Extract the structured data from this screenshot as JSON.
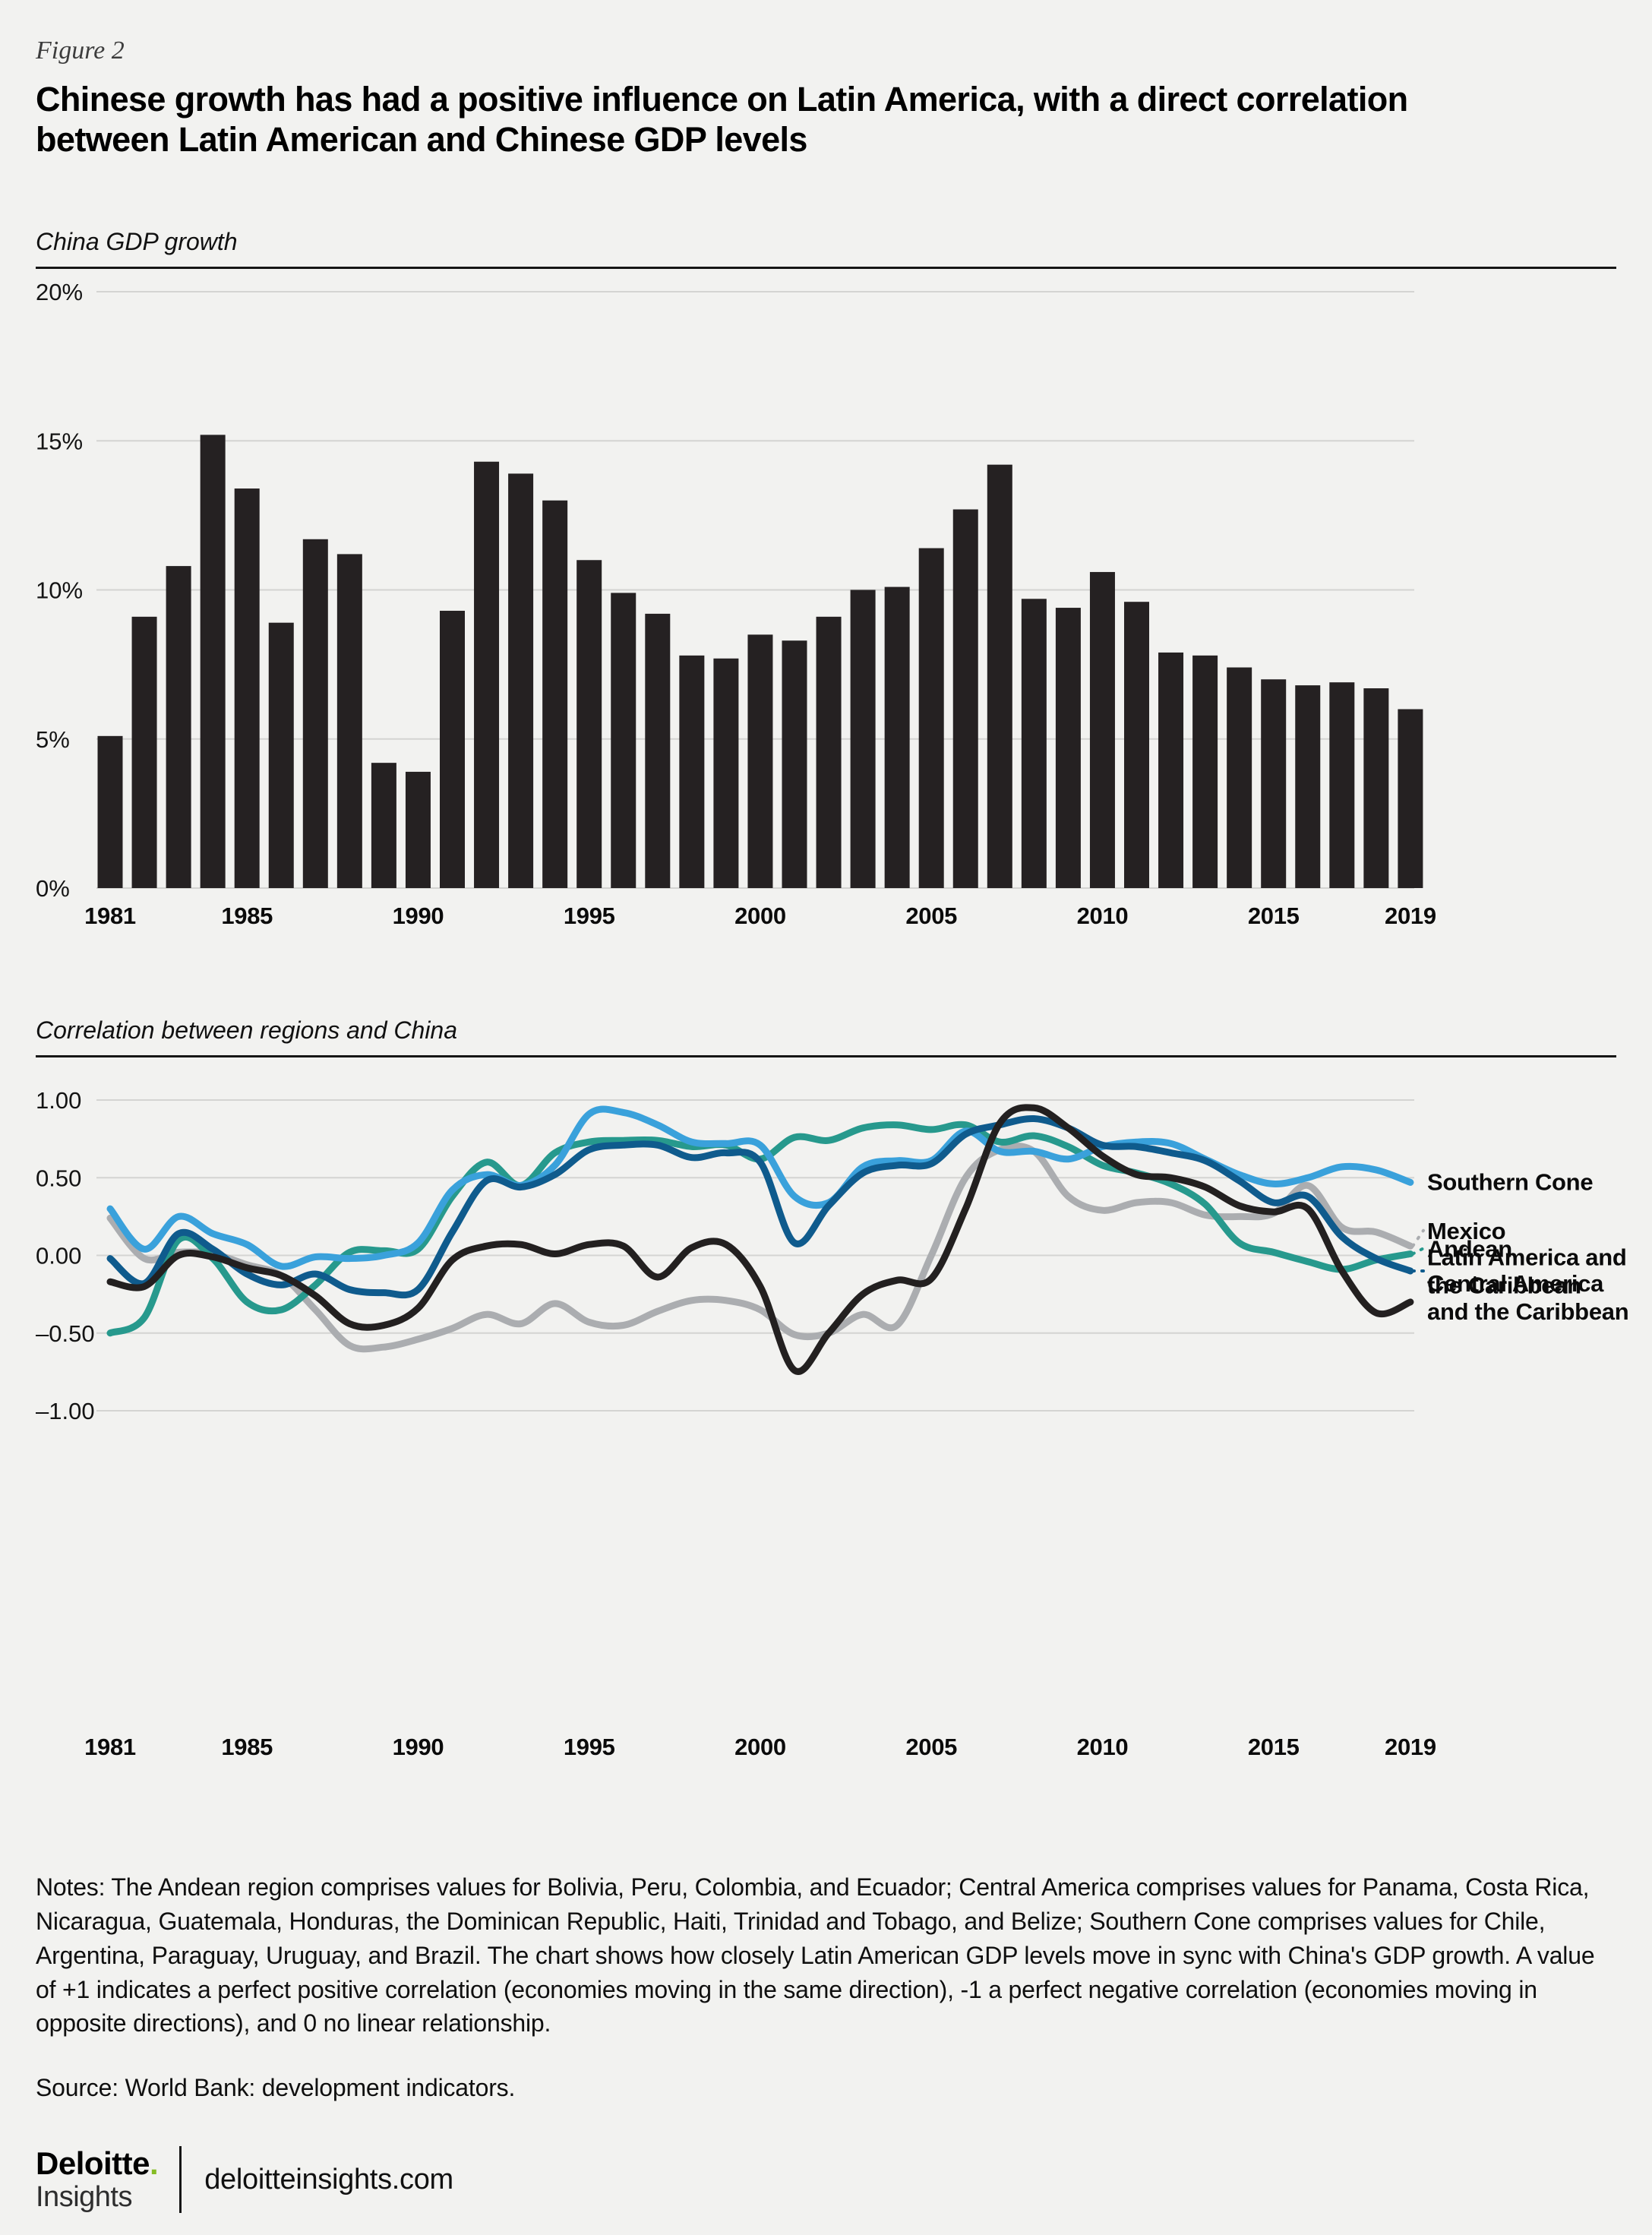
{
  "header": {
    "figure_label": "Figure 2",
    "title_lines": [
      "Chinese growth has had a positive influence on Latin America, with a direct correlation",
      "between Latin American and Chinese GDP levels"
    ]
  },
  "chart_data": [
    {
      "type": "bar",
      "title": "China GDP growth",
      "bar_color": "#252122",
      "ylim": [
        0,
        20
      ],
      "yticks": [
        "20%",
        "15%",
        "10%",
        "5%",
        "0%"
      ],
      "ytick_values": [
        20,
        15,
        10,
        5,
        0
      ],
      "xticks": [
        1981,
        1985,
        1990,
        1995,
        2000,
        2005,
        2010,
        2015,
        2019
      ],
      "grid": true,
      "categories": [
        1981,
        1982,
        1983,
        1984,
        1985,
        1986,
        1987,
        1988,
        1989,
        1990,
        1991,
        1992,
        1993,
        1994,
        1995,
        1996,
        1997,
        1998,
        1999,
        2000,
        2001,
        2002,
        2003,
        2004,
        2005,
        2006,
        2007,
        2008,
        2009,
        2010,
        2011,
        2012,
        2013,
        2014,
        2015,
        2016,
        2017,
        2018,
        2019
      ],
      "values": [
        5.1,
        9.1,
        10.8,
        15.2,
        13.4,
        8.9,
        11.7,
        11.2,
        4.2,
        3.9,
        9.3,
        14.3,
        13.9,
        13.0,
        11.0,
        9.9,
        9.2,
        7.8,
        7.7,
        8.5,
        8.3,
        9.1,
        10.0,
        10.1,
        11.4,
        12.7,
        14.2,
        9.7,
        9.4,
        10.6,
        9.6,
        7.9,
        7.8,
        7.4,
        7.0,
        6.8,
        6.9,
        6.7,
        6.0
      ]
    },
    {
      "type": "line",
      "title": "Correlation between regions and China",
      "ylim": [
        -1,
        1
      ],
      "yticks": [
        "1.00",
        "0.50",
        "0.00",
        "–0.50",
        "–1.00"
      ],
      "ytick_values": [
        1,
        0.5,
        0,
        -0.5,
        -1
      ],
      "xticks": [
        1981,
        1985,
        1990,
        1995,
        2000,
        2005,
        2010,
        2015,
        2019
      ],
      "grid": true,
      "legend_position": "right-of-line-ends",
      "x": [
        1981,
        1982,
        1983,
        1984,
        1985,
        1986,
        1987,
        1988,
        1989,
        1990,
        1991,
        1992,
        1993,
        1994,
        1995,
        1996,
        1997,
        1998,
        1999,
        2000,
        2001,
        2002,
        2003,
        2004,
        2005,
        2006,
        2007,
        2008,
        2009,
        2010,
        2011,
        2012,
        2013,
        2014,
        2015,
        2016,
        2017,
        2018,
        2019
      ],
      "series": [
        {
          "name": "Mexico",
          "color": "#abadb0",
          "label_lines": [
            "Mexico"
          ],
          "label_value": 0.16,
          "leader": true,
          "values": [
            0.24,
            -0.02,
            0.02,
            0.01,
            -0.06,
            -0.13,
            -0.35,
            -0.58,
            -0.59,
            -0.54,
            -0.47,
            -0.38,
            -0.44,
            -0.31,
            -0.43,
            -0.45,
            -0.36,
            -0.29,
            -0.29,
            -0.35,
            -0.51,
            -0.5,
            -0.38,
            -0.45,
            0.0,
            0.5,
            0.68,
            0.67,
            0.38,
            0.29,
            0.34,
            0.34,
            0.26,
            0.25,
            0.27,
            0.45,
            0.18,
            0.15,
            0.06
          ]
        },
        {
          "name": "Andean",
          "color": "#27998d",
          "label_lines": [
            "Andean"
          ],
          "label_value": 0.045,
          "leader": true,
          "values": [
            -0.5,
            -0.4,
            0.1,
            -0.02,
            -0.3,
            -0.35,
            -0.19,
            0.02,
            0.03,
            0.04,
            0.38,
            0.6,
            0.45,
            0.66,
            0.73,
            0.74,
            0.74,
            0.7,
            0.71,
            0.62,
            0.76,
            0.74,
            0.82,
            0.84,
            0.81,
            0.84,
            0.73,
            0.77,
            0.7,
            0.58,
            0.53,
            0.46,
            0.33,
            0.08,
            0.02,
            -0.04,
            -0.09,
            -0.03,
            0.01
          ]
        },
        {
          "name": "Southern Cone",
          "color": "#3aa1db",
          "label_lines": [
            "Southern Cone"
          ],
          "label_value": 0.475,
          "leader": false,
          "values": [
            0.3,
            0.04,
            0.25,
            0.14,
            0.07,
            -0.07,
            -0.01,
            -0.02,
            0.0,
            0.08,
            0.42,
            0.52,
            0.45,
            0.58,
            0.91,
            0.92,
            0.84,
            0.73,
            0.72,
            0.71,
            0.38,
            0.34,
            0.57,
            0.61,
            0.61,
            0.8,
            0.67,
            0.67,
            0.62,
            0.7,
            0.73,
            0.72,
            0.62,
            0.52,
            0.46,
            0.5,
            0.57,
            0.55,
            0.47
          ]
        },
        {
          "name": "Latin America and the Caribbean",
          "color": "#0f5b8d",
          "label_lines": [
            "Latin America and",
            "the Caribbean"
          ],
          "label_value": -0.1,
          "leader": true,
          "values": [
            -0.02,
            -0.18,
            0.14,
            0.04,
            -0.12,
            -0.19,
            -0.12,
            -0.22,
            -0.24,
            -0.22,
            0.15,
            0.48,
            0.44,
            0.52,
            0.68,
            0.71,
            0.71,
            0.63,
            0.66,
            0.6,
            0.08,
            0.32,
            0.53,
            0.58,
            0.59,
            0.78,
            0.84,
            0.88,
            0.82,
            0.71,
            0.7,
            0.66,
            0.61,
            0.48,
            0.34,
            0.38,
            0.12,
            -0.02,
            -0.1
          ]
        },
        {
          "name": "Central America and the Caribbean",
          "color": "#232020",
          "label_lines": [
            "Central America",
            "and the Caribbean"
          ],
          "label_value": -0.27,
          "leader": false,
          "values": [
            -0.17,
            -0.2,
            0.0,
            -0.01,
            -0.08,
            -0.13,
            -0.26,
            -0.44,
            -0.45,
            -0.34,
            -0.03,
            0.06,
            0.07,
            0.01,
            0.07,
            0.06,
            -0.14,
            0.05,
            0.07,
            -0.2,
            -0.74,
            -0.5,
            -0.25,
            -0.16,
            -0.15,
            0.3,
            0.85,
            0.95,
            0.82,
            0.64,
            0.52,
            0.5,
            0.44,
            0.32,
            0.28,
            0.3,
            -0.1,
            -0.37,
            -0.3
          ]
        }
      ]
    }
  ],
  "notes": "Notes: The Andean region comprises values for Bolivia, Peru, Colombia, and Ecuador; Central America comprises values for Panama, Costa Rica, Nicaragua, Guatemala, Honduras, the Dominican Republic, Haiti, Trinidad and Tobago, and Belize; Southern Cone comprises values for Chile, Argentina, Paraguay, Uruguay, and Brazil. The chart shows how closely Latin American GDP levels move in sync with China's GDP growth. A value of +1 indicates a perfect positive correlation (economies moving in the same direction), -1 a perfect negative correlation (economies moving in opposite directions), and 0 no linear relationship.",
  "source": "Source: World Bank: development indicators.",
  "footer": {
    "brand": "Deloitte",
    "brand_dot": ".",
    "sub_brand": "Insights",
    "url": "deloitteinsights.com"
  },
  "colors": {
    "background": "#f2f2f0",
    "bar": "#252122",
    "gridline": "#d4d4d2",
    "rule": "#161616",
    "deloitte_green": "#86bc25"
  }
}
